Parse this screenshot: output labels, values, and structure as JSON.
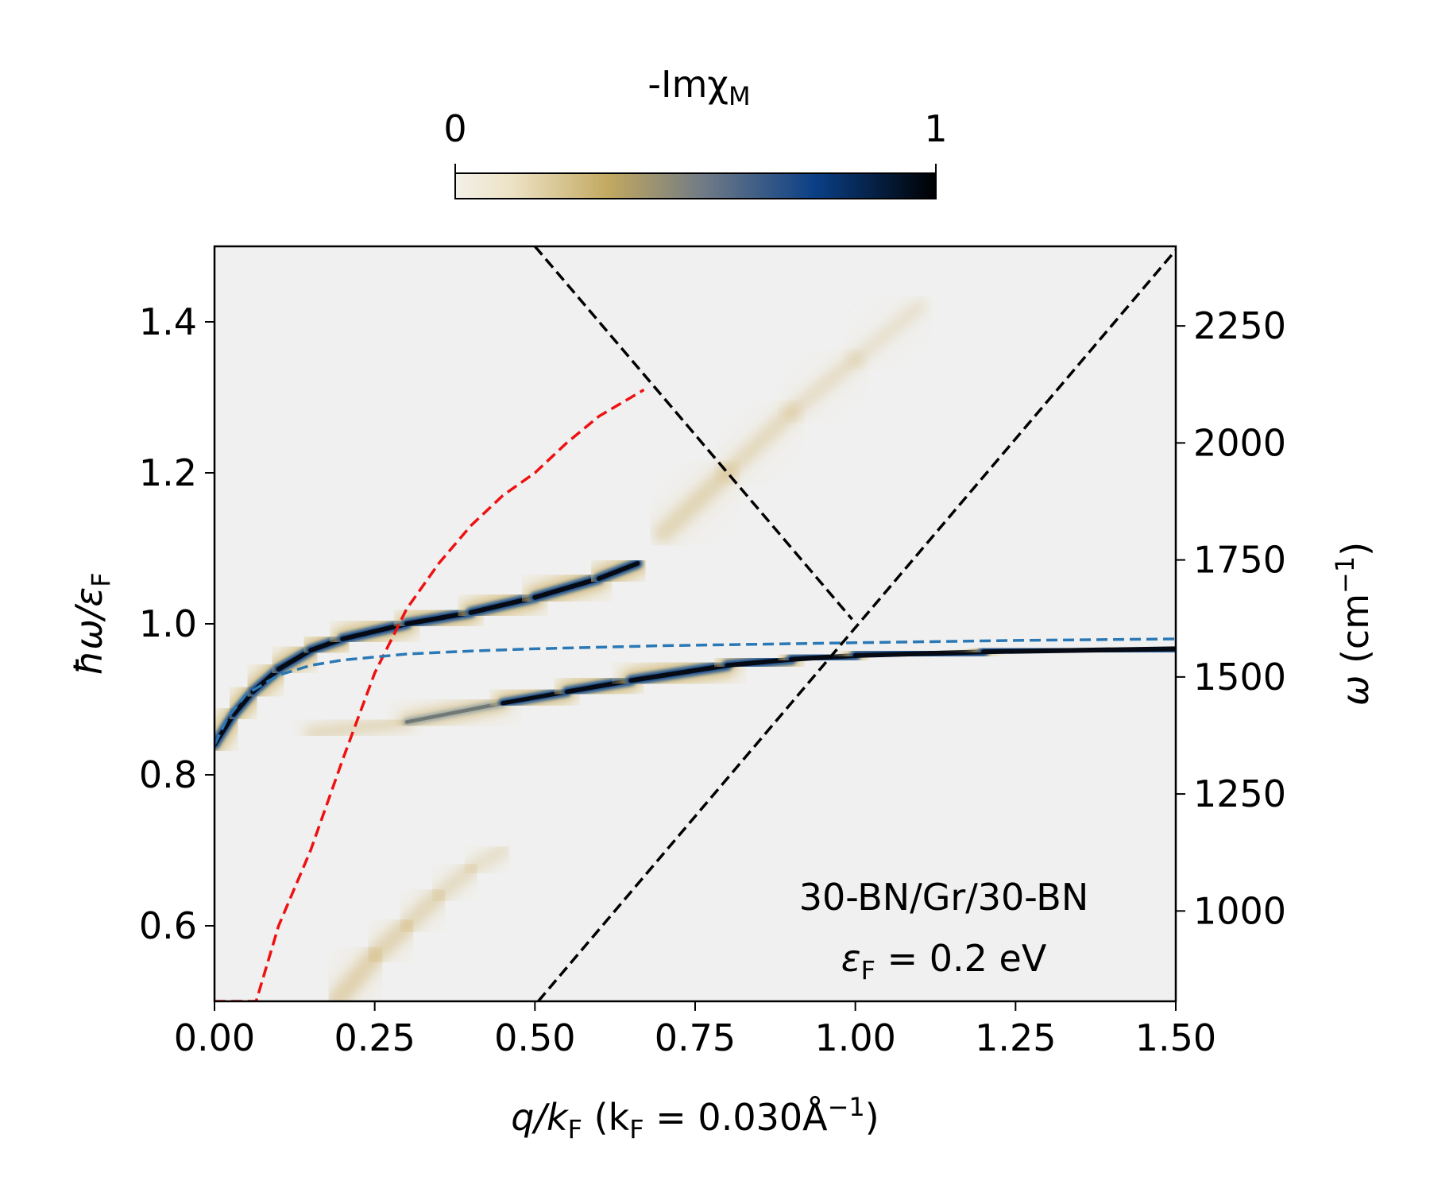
{
  "chart_data": {
    "type": "heatmap",
    "colorbar": {
      "label": "-ImχM",
      "label_main": "-Imχ",
      "label_sub": "M",
      "ticks": [
        "0",
        "1"
      ],
      "range": [
        0,
        1
      ],
      "colors": [
        "#f3f0e8",
        "#e9dcb4",
        "#c2a860",
        "#6f7a86",
        "#0a3f86",
        "#000000"
      ]
    },
    "xaxis": {
      "label_parts": [
        "q/k",
        "F",
        " (k",
        "F",
        " = 0.030Å",
        "−1",
        ")"
      ],
      "range": [
        0.0,
        1.5
      ],
      "ticks": [
        0.0,
        0.25,
        0.5,
        0.75,
        1.0,
        1.25,
        1.5
      ],
      "tick_labels": [
        "0.00",
        "0.25",
        "0.50",
        "0.75",
        "1.00",
        "1.25",
        "1.50"
      ]
    },
    "yaxis_left": {
      "label_parts": [
        "ħω/ε",
        "F"
      ],
      "range": [
        0.5,
        1.5
      ],
      "ticks": [
        0.6,
        0.8,
        1.0,
        1.2,
        1.4
      ],
      "tick_labels": [
        "0.6",
        "0.8",
        "1.0",
        "1.2",
        "1.4"
      ]
    },
    "yaxis_right": {
      "label_parts": [
        "ω",
        " (cm",
        "−1",
        ")"
      ],
      "range": [
        807,
        2420
      ],
      "ticks": [
        1000,
        1250,
        1500,
        1750,
        2000,
        2250
      ],
      "tick_labels": [
        "1000",
        "1250",
        "1500",
        "1750",
        "2000",
        "2250"
      ]
    },
    "annotation": {
      "line1": "30-BN/Gr/30-BN",
      "line2_main": "ε",
      "line2_sub": "F",
      "line2_rest": " = 0.2 eV"
    },
    "series": [
      {
        "name": "red-dashed",
        "color": "#ee1111",
        "style": "dashed",
        "x": [
          0.0,
          0.065,
          0.1,
          0.15,
          0.2,
          0.25,
          0.3,
          0.35,
          0.4,
          0.45,
          0.5,
          0.55,
          0.6,
          0.67
        ],
        "y": [
          0.5,
          0.5,
          0.6,
          0.7,
          0.82,
          0.935,
          1.02,
          1.08,
          1.13,
          1.17,
          1.2,
          1.24,
          1.275,
          1.31
        ]
      },
      {
        "name": "blue-dashed",
        "color": "#2a78b5",
        "style": "dashed",
        "x": [
          0.0,
          0.02,
          0.05,
          0.1,
          0.15,
          0.2,
          0.3,
          0.4,
          0.5,
          0.7,
          1.0,
          1.25,
          1.5
        ],
        "y": [
          0.84,
          0.875,
          0.907,
          0.932,
          0.945,
          0.952,
          0.96,
          0.964,
          0.967,
          0.971,
          0.975,
          0.978,
          0.98
        ]
      },
      {
        "name": "black-dashed-falling",
        "color": "#000000",
        "style": "dashed",
        "x": [
          0.5,
          0.995
        ],
        "y": [
          1.5,
          1.006
        ]
      },
      {
        "name": "black-dashed-rising",
        "color": "#000000",
        "style": "dashed",
        "x": [
          0.505,
          1.5
        ],
        "y": [
          0.5,
          1.495
        ]
      }
    ],
    "bands": [
      {
        "name": "upper-plasmon-branch",
        "x": [
          0.0,
          0.03,
          0.06,
          0.1,
          0.15,
          0.2,
          0.3,
          0.4,
          0.5,
          0.6,
          0.66
        ],
        "y": [
          0.84,
          0.88,
          0.91,
          0.94,
          0.965,
          0.98,
          1.0,
          1.015,
          1.035,
          1.06,
          1.08
        ],
        "intensity": [
          0.8,
          0.95,
          1.0,
          1.0,
          1.0,
          1.0,
          1.0,
          1.0,
          1.0,
          1.0,
          0.9
        ]
      },
      {
        "name": "lower-phonon-branch",
        "x": [
          0.15,
          0.3,
          0.45,
          0.55,
          0.65,
          0.8,
          0.9,
          1.0,
          1.2,
          1.5
        ],
        "y": [
          0.855,
          0.87,
          0.895,
          0.91,
          0.925,
          0.945,
          0.953,
          0.958,
          0.963,
          0.967
        ],
        "intensity": [
          0.15,
          0.3,
          0.55,
          0.9,
          1.0,
          1.0,
          1.0,
          1.0,
          1.0,
          1.0
        ]
      },
      {
        "name": "faint-diagonal-continuum",
        "x": [
          0.7,
          0.8,
          0.9,
          1.0,
          1.1
        ],
        "y": [
          1.12,
          1.2,
          1.28,
          1.35,
          1.42
        ],
        "intensity": [
          0.3,
          0.22,
          0.16,
          0.12,
          0.08
        ]
      },
      {
        "name": "faint-lower-branch",
        "x": [
          0.19,
          0.25,
          0.3,
          0.35,
          0.4,
          0.45
        ],
        "y": [
          0.5,
          0.56,
          0.6,
          0.64,
          0.675,
          0.7
        ],
        "intensity": [
          0.3,
          0.28,
          0.25,
          0.2,
          0.15,
          0.1
        ]
      }
    ]
  }
}
